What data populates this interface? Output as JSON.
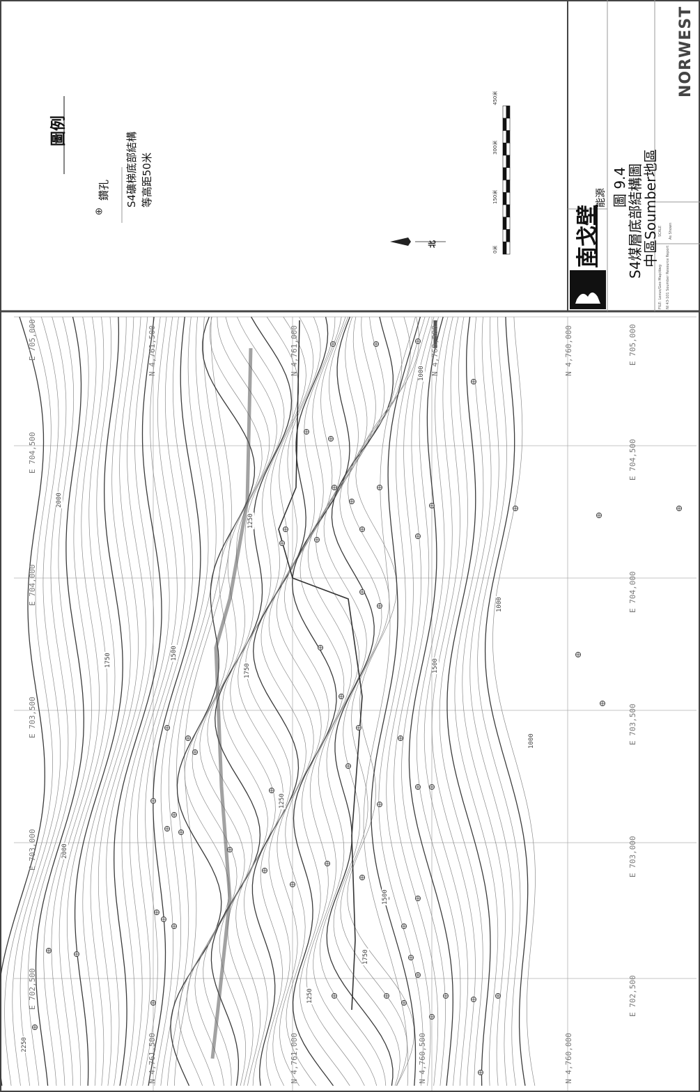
{
  "legend": {
    "title": "圖例",
    "borehole_label": "鑽孔",
    "contour_label_line1": "S4礦梯底部結構",
    "contour_label_line2": "等高距50米"
  },
  "north_label": "北",
  "scale_bar": {
    "labels": [
      "0米",
      "150米",
      "300米",
      "450米"
    ]
  },
  "title_block": {
    "company_name": "南戈壁",
    "company_sub": "能源",
    "figure_number": "圖 9.4",
    "figure_title": "S4煤層底部結構圖",
    "figure_subtitle": "中區Soumber地區",
    "consultant": "NORWEST",
    "scale_caption": "SCALE",
    "scale_value": "As Shown",
    "file_caption": "FILE: Lexus/Geo Map/dwg",
    "project_caption": "NI 43-101 Soumber Resource Report"
  },
  "map": {
    "easting_labels": [
      "E 705,000",
      "E 704,500",
      "E 704,000",
      "E 703,500",
      "E 703,000",
      "E 702,500"
    ],
    "northing_labels_top": [
      "N 4,761,500",
      "N 4,761,000",
      "N 4,760,500",
      "N 4,760,000"
    ],
    "northing_labels_bottom": [
      "N 4,761,500",
      "N 4,761,000",
      "N 4,760,500",
      "N 4,760,000"
    ],
    "contour_labels": [
      "2000",
      "1750",
      "1500",
      "1250",
      "1000",
      "1750",
      "1500",
      "1250",
      "1000",
      "2250",
      "2000",
      "1750",
      "1500",
      "1250",
      "1000"
    ]
  },
  "colors": {
    "contour": "#8a8a8a",
    "index_contour": "#3a3a3a",
    "grid": "#b0b0b0",
    "borehole": "#444444"
  }
}
